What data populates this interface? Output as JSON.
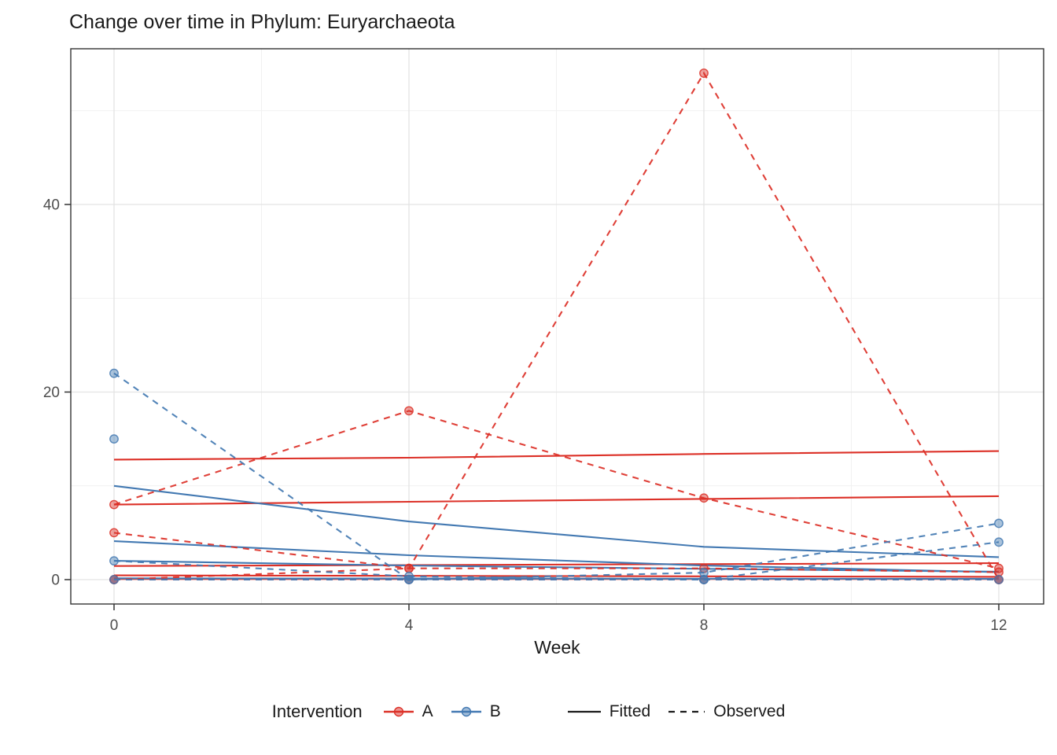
{
  "title": "Change over time in Phylum: Euryarchaeota",
  "legend": {
    "title": "Intervention",
    "item_a": "A",
    "item_b": "B",
    "item_fitted": "Fitted",
    "item_observed": "Observed",
    "position": "bottom"
  },
  "chart_data": {
    "type": "line",
    "title": "Change over time in Phylum: Euryarchaeota",
    "xlabel": "Week",
    "ylabel": "",
    "weeks": [
      0,
      4,
      8,
      12
    ],
    "x_ticks": [
      0,
      4,
      8,
      12
    ],
    "x_minor_ticks": [
      2,
      6,
      10
    ],
    "y_ticks": [
      0,
      20,
      40
    ],
    "y_minor_ticks": [
      10,
      30,
      50
    ],
    "xlim": [
      -0.6,
      12.6
    ],
    "ylim": [
      -2.6,
      56.6
    ],
    "grid": true,
    "legend_position": "bottom",
    "colors": {
      "A": "#DC3027",
      "B": "#4379B2",
      "neutral": "#1a1a1a",
      "tick_label": "#4D4D4D",
      "grid_major": "#E3E3E3",
      "grid_minor": "#F1F1F1",
      "panel_border": "#333333"
    },
    "series": [
      {
        "name": "A-fitted-1",
        "group": "A",
        "linetype": "Fitted",
        "values": [
          12.8,
          13.0,
          13.4,
          13.7
        ]
      },
      {
        "name": "A-fitted-2",
        "group": "A",
        "linetype": "Fitted",
        "values": [
          8.0,
          8.3,
          8.6,
          8.9
        ]
      },
      {
        "name": "A-fitted-3",
        "group": "A",
        "linetype": "Fitted",
        "values": [
          1.45,
          1.55,
          1.65,
          1.75
        ]
      },
      {
        "name": "A-fitted-4",
        "group": "A",
        "linetype": "Fitted",
        "values": [
          0.45,
          0.4,
          0.35,
          0.3
        ]
      },
      {
        "name": "A-fitted-5",
        "group": "A",
        "linetype": "Fitted",
        "values": [
          0.07,
          0.07,
          0.07,
          0.07
        ]
      },
      {
        "name": "B-fitted-1",
        "group": "B",
        "linetype": "Fitted",
        "values": [
          10.0,
          6.2,
          3.5,
          2.4
        ]
      },
      {
        "name": "B-fitted-2",
        "group": "B",
        "linetype": "Fitted",
        "values": [
          4.1,
          2.6,
          1.5,
          0.8
        ]
      },
      {
        "name": "B-fitted-3",
        "group": "B",
        "linetype": "Fitted",
        "values": [
          2.0,
          1.5,
          1.15,
          0.85
        ]
      },
      {
        "name": "B-fitted-4",
        "group": "B",
        "linetype": "Fitted",
        "values": [
          0.14,
          0.12,
          0.1,
          0.09
        ]
      },
      {
        "name": "A-observed-1",
        "group": "A",
        "linetype": "Observed",
        "values": [
          5,
          1.2,
          54,
          0
        ]
      },
      {
        "name": "A-observed-2",
        "group": "A",
        "linetype": "Observed",
        "values": [
          8,
          18,
          8.7,
          1.2
        ]
      },
      {
        "name": "A-observed-3",
        "group": "A",
        "linetype": "Observed",
        "values": [
          0,
          1.2,
          1.2,
          0.8
        ]
      },
      {
        "name": "A-observed-4",
        "group": "A",
        "linetype": "Observed",
        "values": [
          0,
          0,
          0,
          0
        ]
      },
      {
        "name": "B-observed-1",
        "group": "B",
        "linetype": "Observed",
        "values": [
          22,
          0,
          0.75,
          6
        ]
      },
      {
        "name": "B-observed-2",
        "group": "B",
        "linetype": "Observed",
        "values": [
          15,
          null,
          null,
          null
        ]
      },
      {
        "name": "B-observed-3",
        "group": "B",
        "linetype": "Observed",
        "values": [
          2,
          0.35,
          0,
          4
        ]
      },
      {
        "name": "B-observed-4",
        "group": "B",
        "linetype": "Observed",
        "values": [
          0,
          0,
          0,
          0
        ]
      }
    ]
  }
}
